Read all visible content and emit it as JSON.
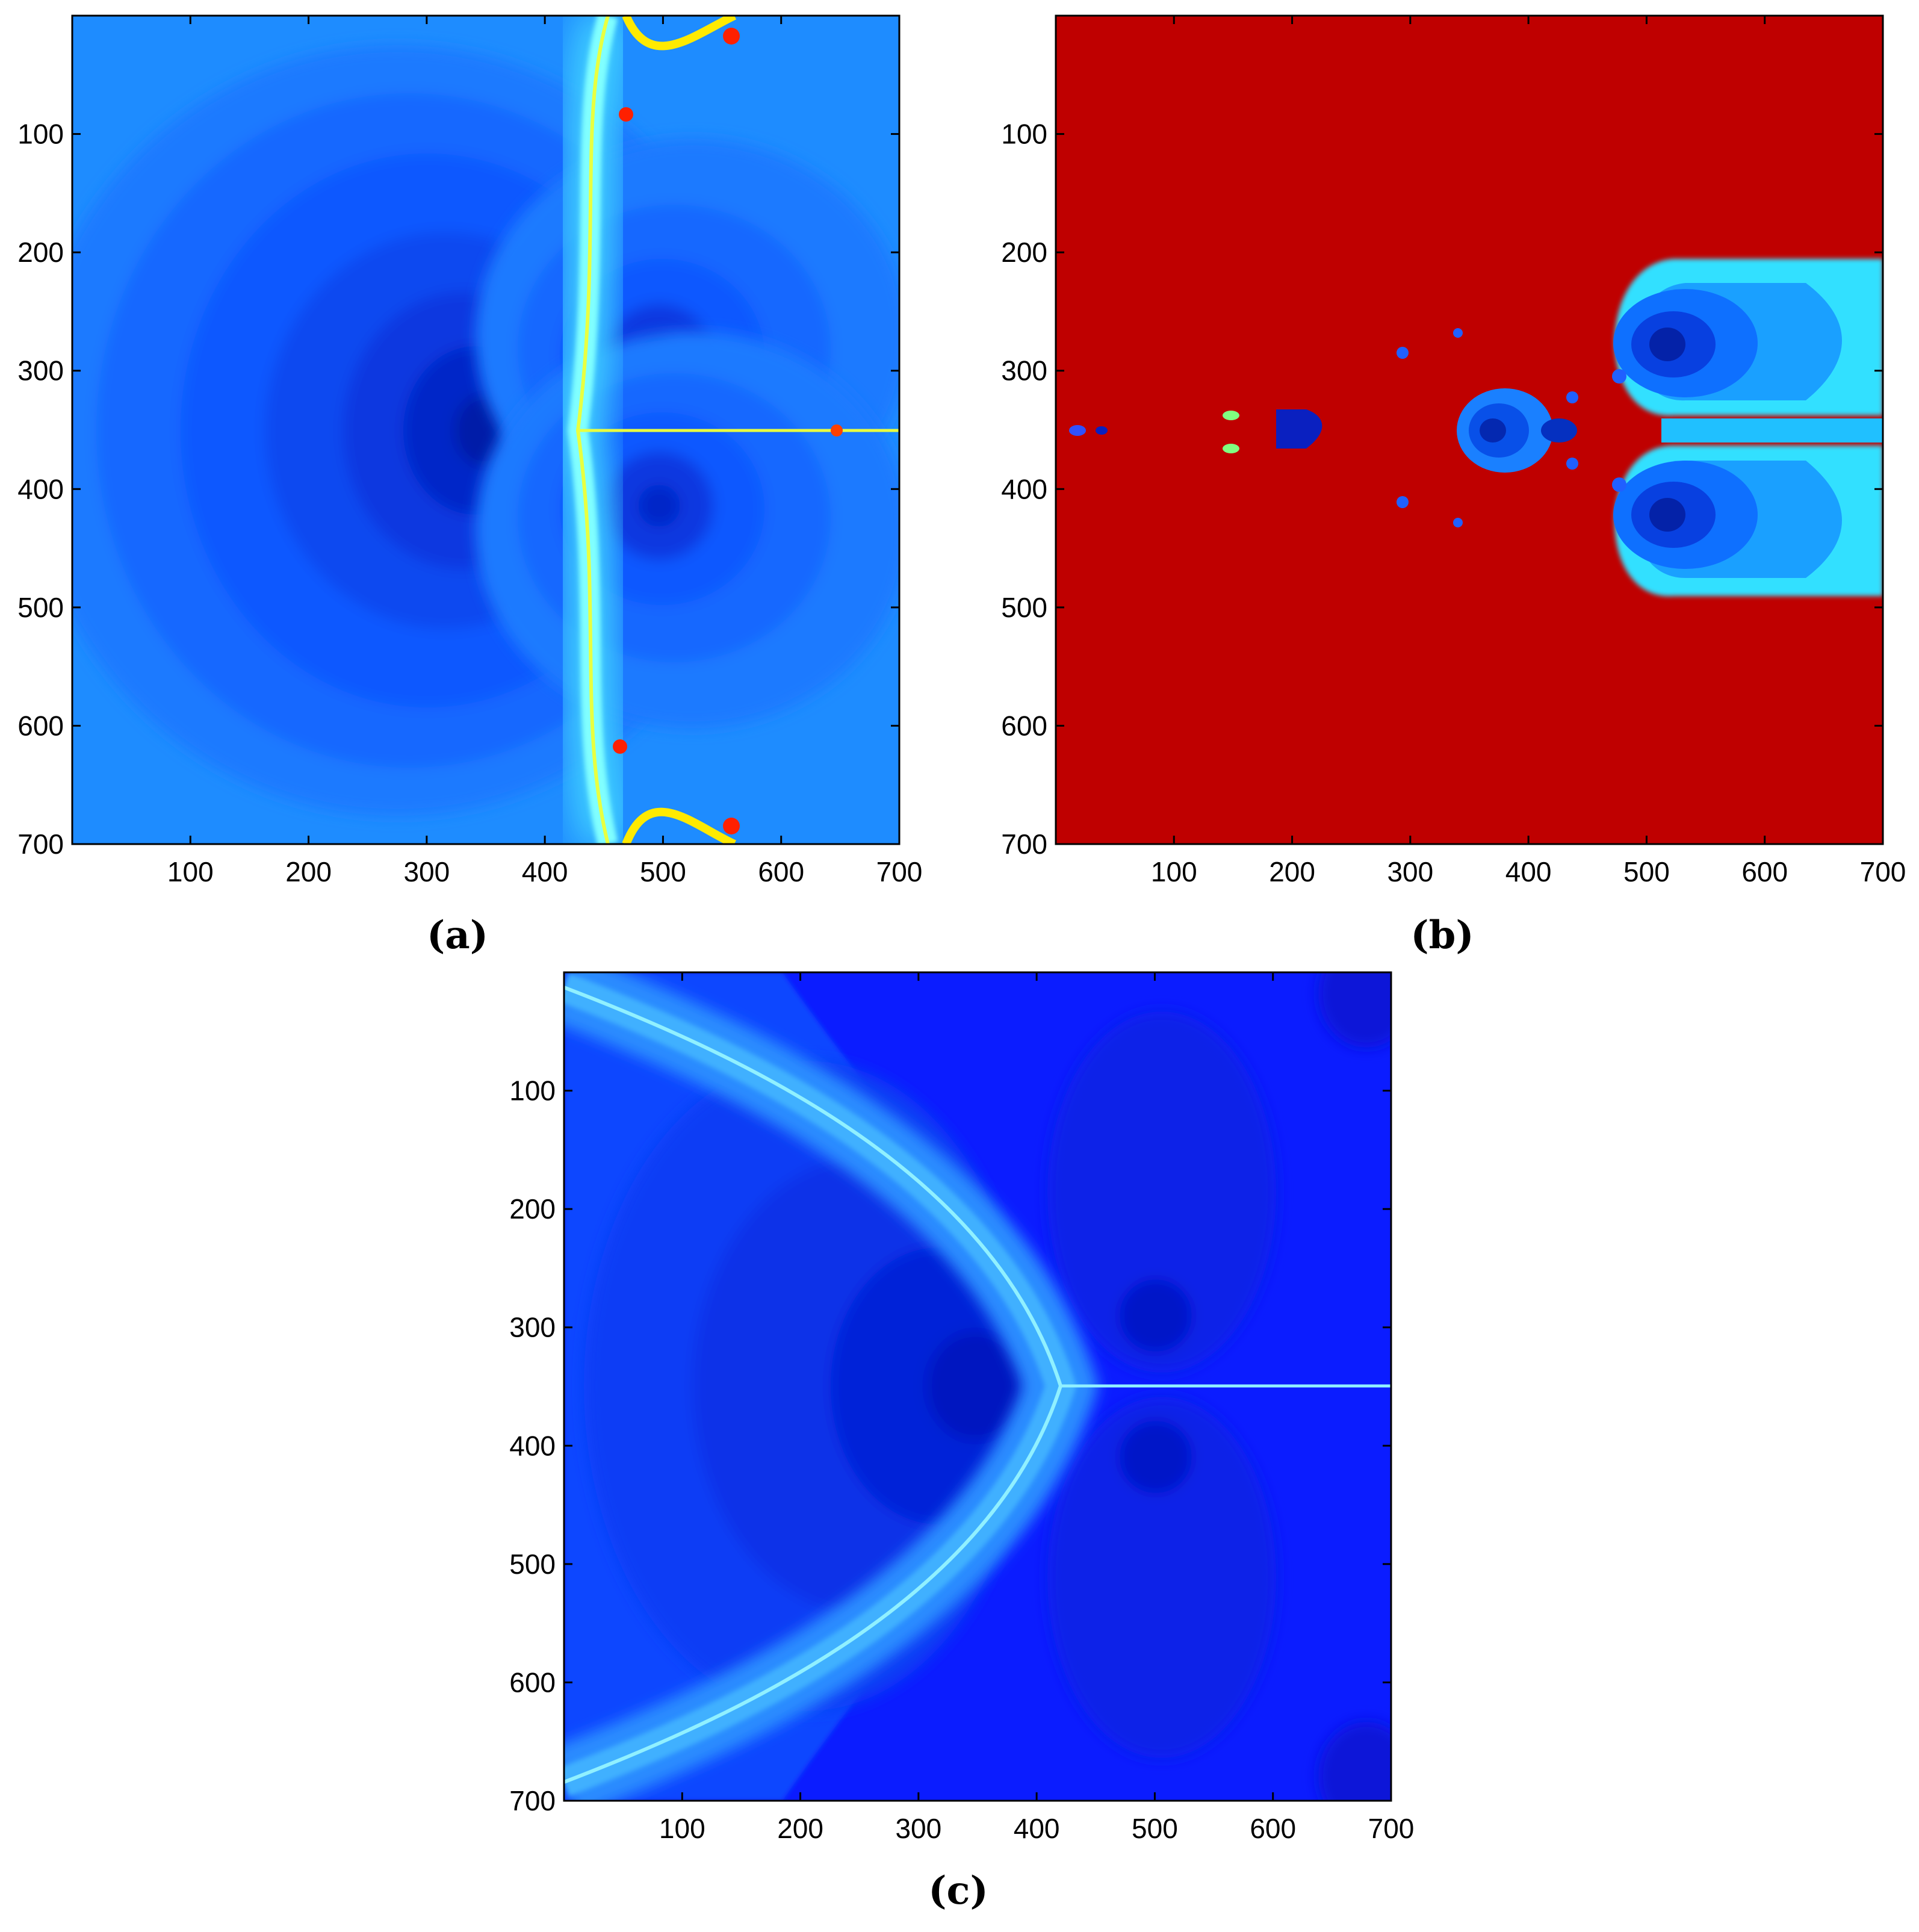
{
  "colors": {
    "jet_deep": "#00007f",
    "jet_blue": "#0000ff",
    "jet_mid_blue": "#0040ff",
    "jet_light_blue": "#0080ff",
    "jet_cyan": "#00ffff",
    "jet_yellow": "#ffff00",
    "jet_red": "#ff0000",
    "jet_dark_red": "#bf0000"
  },
  "chart_data": [
    {
      "type": "heatmap",
      "panel_label": "(a)",
      "xlim": [
        0,
        700
      ],
      "ylim": [
        700,
        0
      ],
      "xticks": [
        100,
        200,
        300,
        400,
        500,
        600,
        700
      ],
      "yticks": [
        100,
        200,
        300,
        400,
        500,
        600,
        700
      ],
      "colormap": "jet",
      "background": "light-blue",
      "basin_centers": [
        [
          355,
          350
        ],
        [
          505,
          295
        ],
        [
          505,
          410
        ]
      ],
      "boundary": "vertical fractal boundary near x=455 with horizontal branch along y=350 to the right; yellow/red near x=470-560 at top and bottom"
    },
    {
      "type": "heatmap",
      "panel_label": "(b)",
      "xlim": [
        0,
        700
      ],
      "ylim": [
        700,
        0
      ],
      "xticks": [
        100,
        200,
        300,
        400,
        500,
        600,
        700
      ],
      "yticks": [
        100,
        200,
        300,
        400,
        500,
        600,
        700
      ],
      "colormap": "jet",
      "background": "dark-red",
      "basin_centers": [
        [
          365,
          350
        ],
        [
          505,
          295
        ],
        [
          505,
          410
        ],
        [
          190,
          350
        ]
      ],
      "boundary": "mostly divergent (dark red) with blue basins near y=350 and two blue lobes on the right centered at y=295 and y=410"
    },
    {
      "type": "heatmap",
      "panel_label": "(c)",
      "xlim": [
        0,
        700
      ],
      "ylim": [
        700,
        0
      ],
      "xticks": [
        100,
        200,
        300,
        400,
        500,
        600,
        700
      ],
      "yticks": [
        100,
        200,
        300,
        400,
        500,
        600,
        700
      ],
      "colormap": "jet",
      "background": "blue",
      "basin_centers": [
        [
          345,
          350
        ],
        [
          500,
          295
        ],
        [
          500,
          410
        ]
      ],
      "boundary": "arc-shaped fractal boundary from top-left through x=410,y=350 to bottom-left, with horizontal branch along y=350 to the right"
    }
  ]
}
